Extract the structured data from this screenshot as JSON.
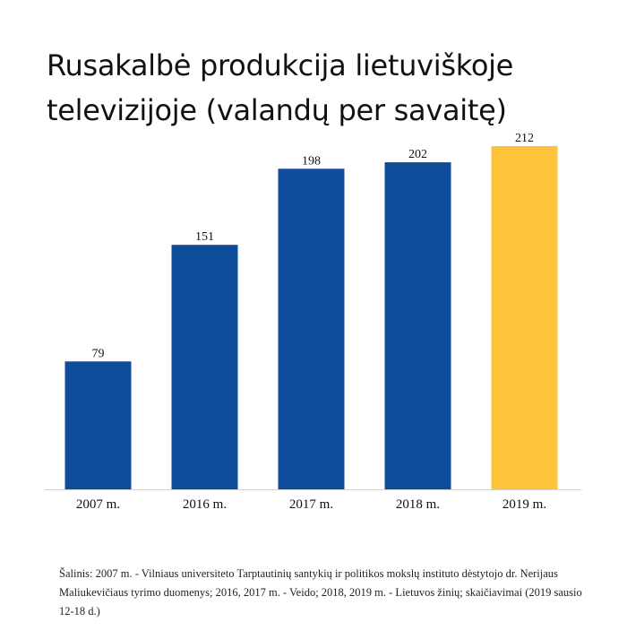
{
  "title": {
    "line1": "Rusakalbė produkcija lietuviškoje",
    "line2": "televizijoje (valandų per savaitę)"
  },
  "chart_data": {
    "type": "bar",
    "categories": [
      "2007 m.",
      "2016 m.",
      "2017 m.",
      "2018 m.",
      "2019 m."
    ],
    "values": [
      79,
      151,
      198,
      202,
      212
    ],
    "data_labels": [
      "79",
      "151",
      "198",
      "202",
      "212"
    ],
    "colors": [
      "#0f4c9c",
      "#0f4c9c",
      "#0f4c9c",
      "#0f4c9c",
      "#fdc43b"
    ],
    "ylim": [
      0,
      212
    ],
    "grid": false,
    "legend": "none"
  },
  "source": "Šalinis: 2007 m. - Vilniaus universiteto Tarptautinių santykių ir politikos mokslų instituto dėstytojo dr. Nerijaus Maliukevičiaus tyrimo duomenys; 2016, 2017 m. - Veido; 2018, 2019 m. - Lietuvos žinių; skaičiavimai (2019 sausio 12-18 d.)"
}
